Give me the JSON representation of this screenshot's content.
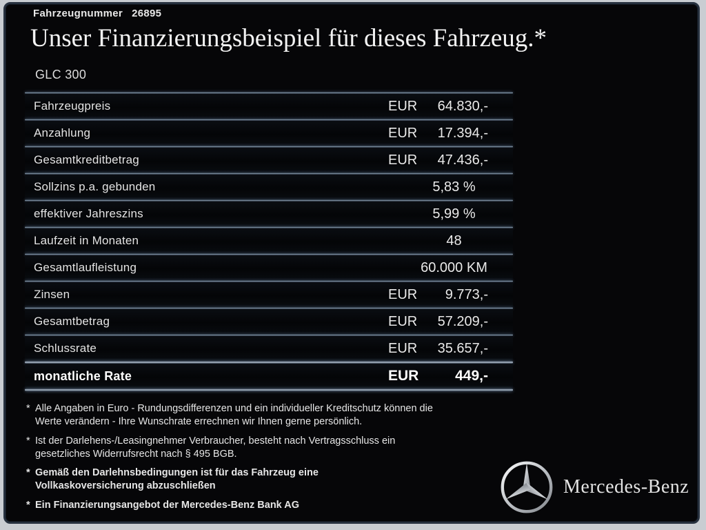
{
  "header": {
    "vehicle_number_label": "Fahrzeugnummer",
    "vehicle_number": "26895",
    "title": "Unser Finanzierungsbeispiel für dieses Fahrzeug.*",
    "model": "GLC 300"
  },
  "table": {
    "rows": [
      {
        "label": "Fahrzeugpreis",
        "currency": "EUR",
        "value": "64.830,-",
        "align": "right",
        "bold": false
      },
      {
        "label": "Anzahlung",
        "currency": "EUR",
        "value": "17.394,-",
        "align": "right",
        "bold": false
      },
      {
        "label": "Gesamtkreditbetrag",
        "currency": "EUR",
        "value": "47.436,-",
        "align": "right",
        "bold": false
      },
      {
        "label": "Sollzins p.a. gebunden",
        "currency": "",
        "value": "5,83 %",
        "align": "center",
        "bold": false
      },
      {
        "label": "effektiver Jahreszins",
        "currency": "",
        "value": "5,99 %",
        "align": "center",
        "bold": false
      },
      {
        "label": "Laufzeit in Monaten",
        "currency": "",
        "value": "48",
        "align": "center",
        "bold": false
      },
      {
        "label": "Gesamtlaufleistung",
        "currency": "",
        "value": "60.000 KM",
        "align": "center",
        "bold": false
      },
      {
        "label": "Zinsen",
        "currency": "EUR",
        "value": "9.773,-",
        "align": "right",
        "bold": false
      },
      {
        "label": "Gesamtbetrag",
        "currency": "EUR",
        "value": "57.209,-",
        "align": "right",
        "bold": false
      },
      {
        "label": "Schlussrate",
        "currency": "EUR",
        "value": "35.657,-",
        "align": "right",
        "bold": false
      },
      {
        "label": "monatliche Rate",
        "currency": "EUR",
        "value": "449,-",
        "align": "right",
        "bold": true
      }
    ]
  },
  "footnotes": [
    {
      "marker": "*",
      "bold": false,
      "text": "Alle Angaben in Euro - Rundungsdifferenzen und ein individueller Kreditschutz können die\nWerte verändern - Ihre Wunschrate errechnen wir Ihnen gerne persönlich."
    },
    {
      "marker": "*",
      "bold": false,
      "text": "Ist der Darlehens-/Leasingnehmer Verbraucher, besteht nach Vertragsschluss ein\ngesetzliches Widerrufsrecht nach § 495 BGB."
    },
    {
      "marker": "*",
      "bold": true,
      "text": "Gemäß den Darlehnsbedingungen ist für das Fahrzeug eine\nVollkaskoversicherung abzuschließen"
    },
    {
      "marker": "*",
      "bold": true,
      "text": "Ein Finanzierungsangebot der Mercedes-Benz Bank AG"
    }
  ],
  "brand": {
    "logo": "mercedes-star-icon",
    "wordmark": "Mercedes-Benz"
  },
  "colors": {
    "page_background": "#c9cdd2",
    "panel_background": "#060608",
    "panel_border": "#27313f",
    "separator": "#8496a9",
    "text": "#e8e8e8"
  }
}
